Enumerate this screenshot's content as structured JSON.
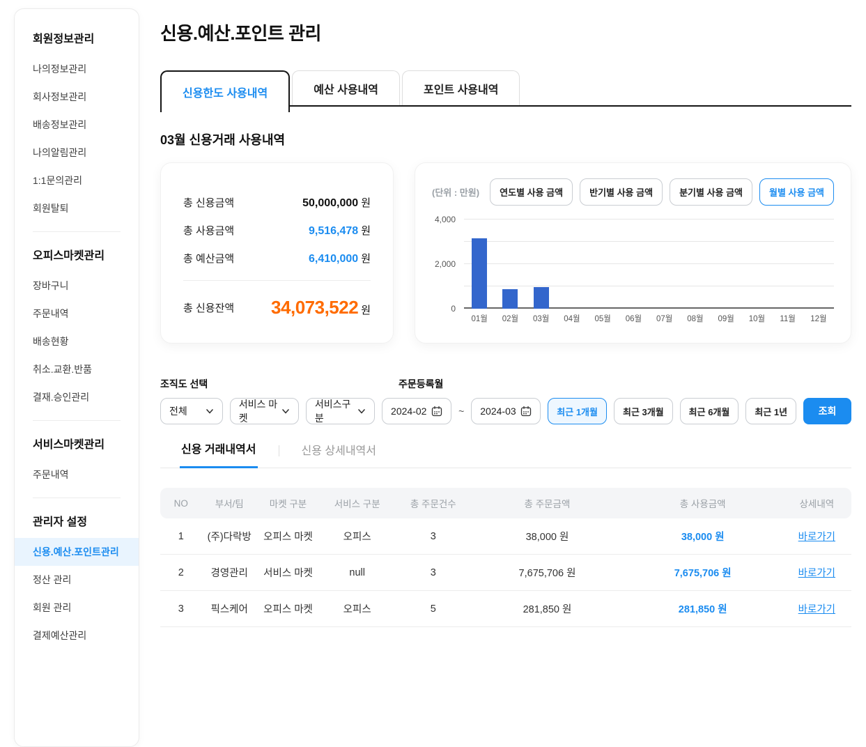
{
  "colors": {
    "accent": "#1b8cf0",
    "accent_bg": "#e9f4fe",
    "orange": "#ff6b00",
    "chart_bar": "#3366cc"
  },
  "page_title": "신용.예산.포인트 관리",
  "sidebar": {
    "sections": [
      {
        "title": "회원정보관리",
        "items": [
          {
            "label": "나의정보관리",
            "active": false
          },
          {
            "label": "회사정보관리",
            "active": false
          },
          {
            "label": "배송정보관리",
            "active": false
          },
          {
            "label": "나의알림관리",
            "active": false
          },
          {
            "label": "1:1문의관리",
            "active": false
          },
          {
            "label": "회원탈퇴",
            "active": false
          }
        ]
      },
      {
        "title": "오피스마켓관리",
        "items": [
          {
            "label": "장바구니",
            "active": false
          },
          {
            "label": "주문내역",
            "active": false
          },
          {
            "label": "배송현황",
            "active": false
          },
          {
            "label": "취소.교환.반품",
            "active": false
          },
          {
            "label": "결재.승인관리",
            "active": false
          }
        ]
      },
      {
        "title": "서비스마켓관리",
        "items": [
          {
            "label": "주문내역",
            "active": false
          }
        ]
      },
      {
        "title": "관리자 설정",
        "items": [
          {
            "label": "신용.예산.포인트관리",
            "active": true
          },
          {
            "label": "정산 관리",
            "active": false
          },
          {
            "label": "회원 관리",
            "active": false
          },
          {
            "label": "결제예산관리",
            "active": false
          }
        ]
      }
    ]
  },
  "tabs": [
    {
      "label": "신용한도 사용내역",
      "active": true
    },
    {
      "label": "예산 사용내역",
      "active": false
    },
    {
      "label": "포인트 사용내역",
      "active": false
    }
  ],
  "summary": {
    "heading": "03월 신용거래 사용내역",
    "rows": [
      {
        "label": "총 신용금액",
        "value": "50,000,000",
        "unit": "원",
        "emphasis": "default"
      },
      {
        "label": "총 사용금액",
        "value": "9,516,478",
        "unit": "원",
        "emphasis": "accent"
      },
      {
        "label": "총 예산금액",
        "value": "6,410,000",
        "unit": "원",
        "emphasis": "accent"
      }
    ],
    "balance": {
      "label": "총 신용잔액",
      "value": "34,073,522",
      "unit": "원",
      "emphasis": "orange"
    }
  },
  "chart_panel": {
    "unit_label": "(단위 : 만원)",
    "period_buttons": [
      {
        "label": "연도별 사용 금액",
        "active": false
      },
      {
        "label": "반기별 사용 금액",
        "active": false
      },
      {
        "label": "분기별 사용 금액",
        "active": false
      },
      {
        "label": "월별 사용 금액",
        "active": true
      }
    ]
  },
  "chart_data": {
    "type": "bar",
    "title": "월별 사용 금액",
    "unit": "만원",
    "categories": [
      "01월",
      "02월",
      "03월",
      "04월",
      "05월",
      "06월",
      "07월",
      "08월",
      "09월",
      "10월",
      "11월",
      "12월"
    ],
    "values": [
      3160,
      870,
      970,
      0,
      0,
      0,
      0,
      0,
      0,
      0,
      0,
      0
    ],
    "xlabel": "",
    "ylabel": "",
    "ylim": [
      0,
      4000
    ],
    "gridline_step": 1000,
    "grid": true,
    "legend": false,
    "yticks": [
      {
        "value": 0,
        "label": "0"
      },
      {
        "value": 2000,
        "label": "2,000"
      },
      {
        "value": 4000,
        "label": "4,000"
      }
    ]
  },
  "filters": {
    "org_label": "조직도 선택",
    "order_month_label": "주문등록월",
    "selects": [
      {
        "value": "전체"
      },
      {
        "value": "서비스 마켓"
      },
      {
        "value": "서비스구분"
      }
    ],
    "date_from": "2024-02",
    "date_to": "2024-03",
    "range_separator": "~",
    "quick_ranges": [
      {
        "label": "최근 1개월",
        "active": true
      },
      {
        "label": "최근 3개월",
        "active": false
      },
      {
        "label": "최근 6개월",
        "active": false
      },
      {
        "label": "최근 1년",
        "active": false
      }
    ],
    "search_label": "조회"
  },
  "subtabs": [
    {
      "label": "신용 거래내역서",
      "active": true
    },
    {
      "label": "신용 상세내역서",
      "active": false
    }
  ],
  "table": {
    "columns": [
      "NO",
      "부서/팀",
      "마켓 구분",
      "서비스 구분",
      "총 주문건수",
      "총 주문금액",
      "총 사용금액",
      "상세내역"
    ],
    "rows": [
      {
        "no": "1",
        "dept": "(주)다락방",
        "market": "오피스 마켓",
        "service": "오피스",
        "orders": "3",
        "order_amount": "38,000 원",
        "used_amount": "38,000 원",
        "detail": "바로가기"
      },
      {
        "no": "2",
        "dept": "경영관리",
        "market": "서비스 마켓",
        "service": "null",
        "orders": "3",
        "order_amount": "7,675,706 원",
        "used_amount": "7,675,706 원",
        "detail": "바로가기"
      },
      {
        "no": "3",
        "dept": "픽스케어",
        "market": "오피스 마켓",
        "service": "오피스",
        "orders": "5",
        "order_amount": "281,850 원",
        "used_amount": "281,850 원",
        "detail": "바로가기"
      }
    ]
  }
}
